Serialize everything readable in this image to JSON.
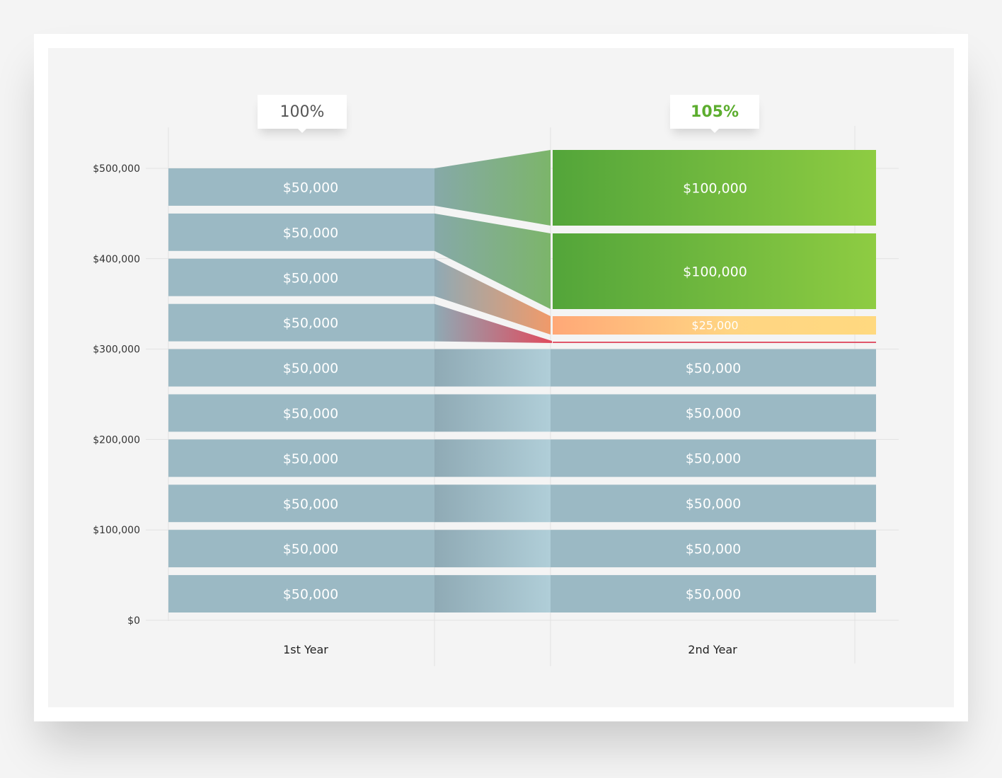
{
  "colors": {
    "bar": "#9bb9c4",
    "green_dark": "#53a53a",
    "green_light": "#8ecc42",
    "yellow": "#ffd882",
    "orange": "#ffb07b",
    "red": "#e0566a",
    "grid": "#e2e2e2",
    "text_dark": "#333333"
  },
  "callouts": [
    {
      "label": "100%",
      "color": "#555555"
    },
    {
      "label": "105%",
      "color": "#5cad2e"
    }
  ],
  "chart_data": {
    "type": "bar",
    "subtype": "stacked-flow",
    "categories": [
      "1st Year",
      "2nd Year"
    ],
    "ylim": [
      0,
      500000
    ],
    "yticks": [
      0,
      100000,
      200000,
      300000,
      400000,
      500000
    ],
    "ytick_labels": [
      "$0",
      "$100,000",
      "$200,000",
      "$300,000",
      "$400,000",
      "$500,000"
    ],
    "grid": true,
    "totals_pct": [
      "100%",
      "105%"
    ],
    "year1": {
      "segments": [
        {
          "value": 50000,
          "label": "$50,000"
        },
        {
          "value": 50000,
          "label": "$50,000"
        },
        {
          "value": 50000,
          "label": "$50,000"
        },
        {
          "value": 50000,
          "label": "$50,000"
        },
        {
          "value": 50000,
          "label": "$50,000"
        },
        {
          "value": 50000,
          "label": "$50,000"
        },
        {
          "value": 50000,
          "label": "$50,000"
        },
        {
          "value": 50000,
          "label": "$50,000"
        },
        {
          "value": 50000,
          "label": "$50,000"
        },
        {
          "value": 50000,
          "label": "$50,000"
        }
      ]
    },
    "year2": {
      "segments": [
        {
          "value": 50000,
          "label": "$50,000",
          "kind": "same"
        },
        {
          "value": 50000,
          "label": "$50,000",
          "kind": "same"
        },
        {
          "value": 50000,
          "label": "$50,000",
          "kind": "same"
        },
        {
          "value": 50000,
          "label": "$50,000",
          "kind": "same"
        },
        {
          "value": 50000,
          "label": "$50,000",
          "kind": "same"
        },
        {
          "value": 50000,
          "label": "$50,000",
          "kind": "same"
        },
        {
          "value": 0,
          "label": "",
          "kind": "lost"
        },
        {
          "value": 25000,
          "label": "$25,000",
          "kind": "decrease"
        },
        {
          "value": 100000,
          "label": "$100,000",
          "kind": "increase"
        },
        {
          "value": 100000,
          "label": "$100,000",
          "kind": "increase"
        }
      ]
    }
  }
}
